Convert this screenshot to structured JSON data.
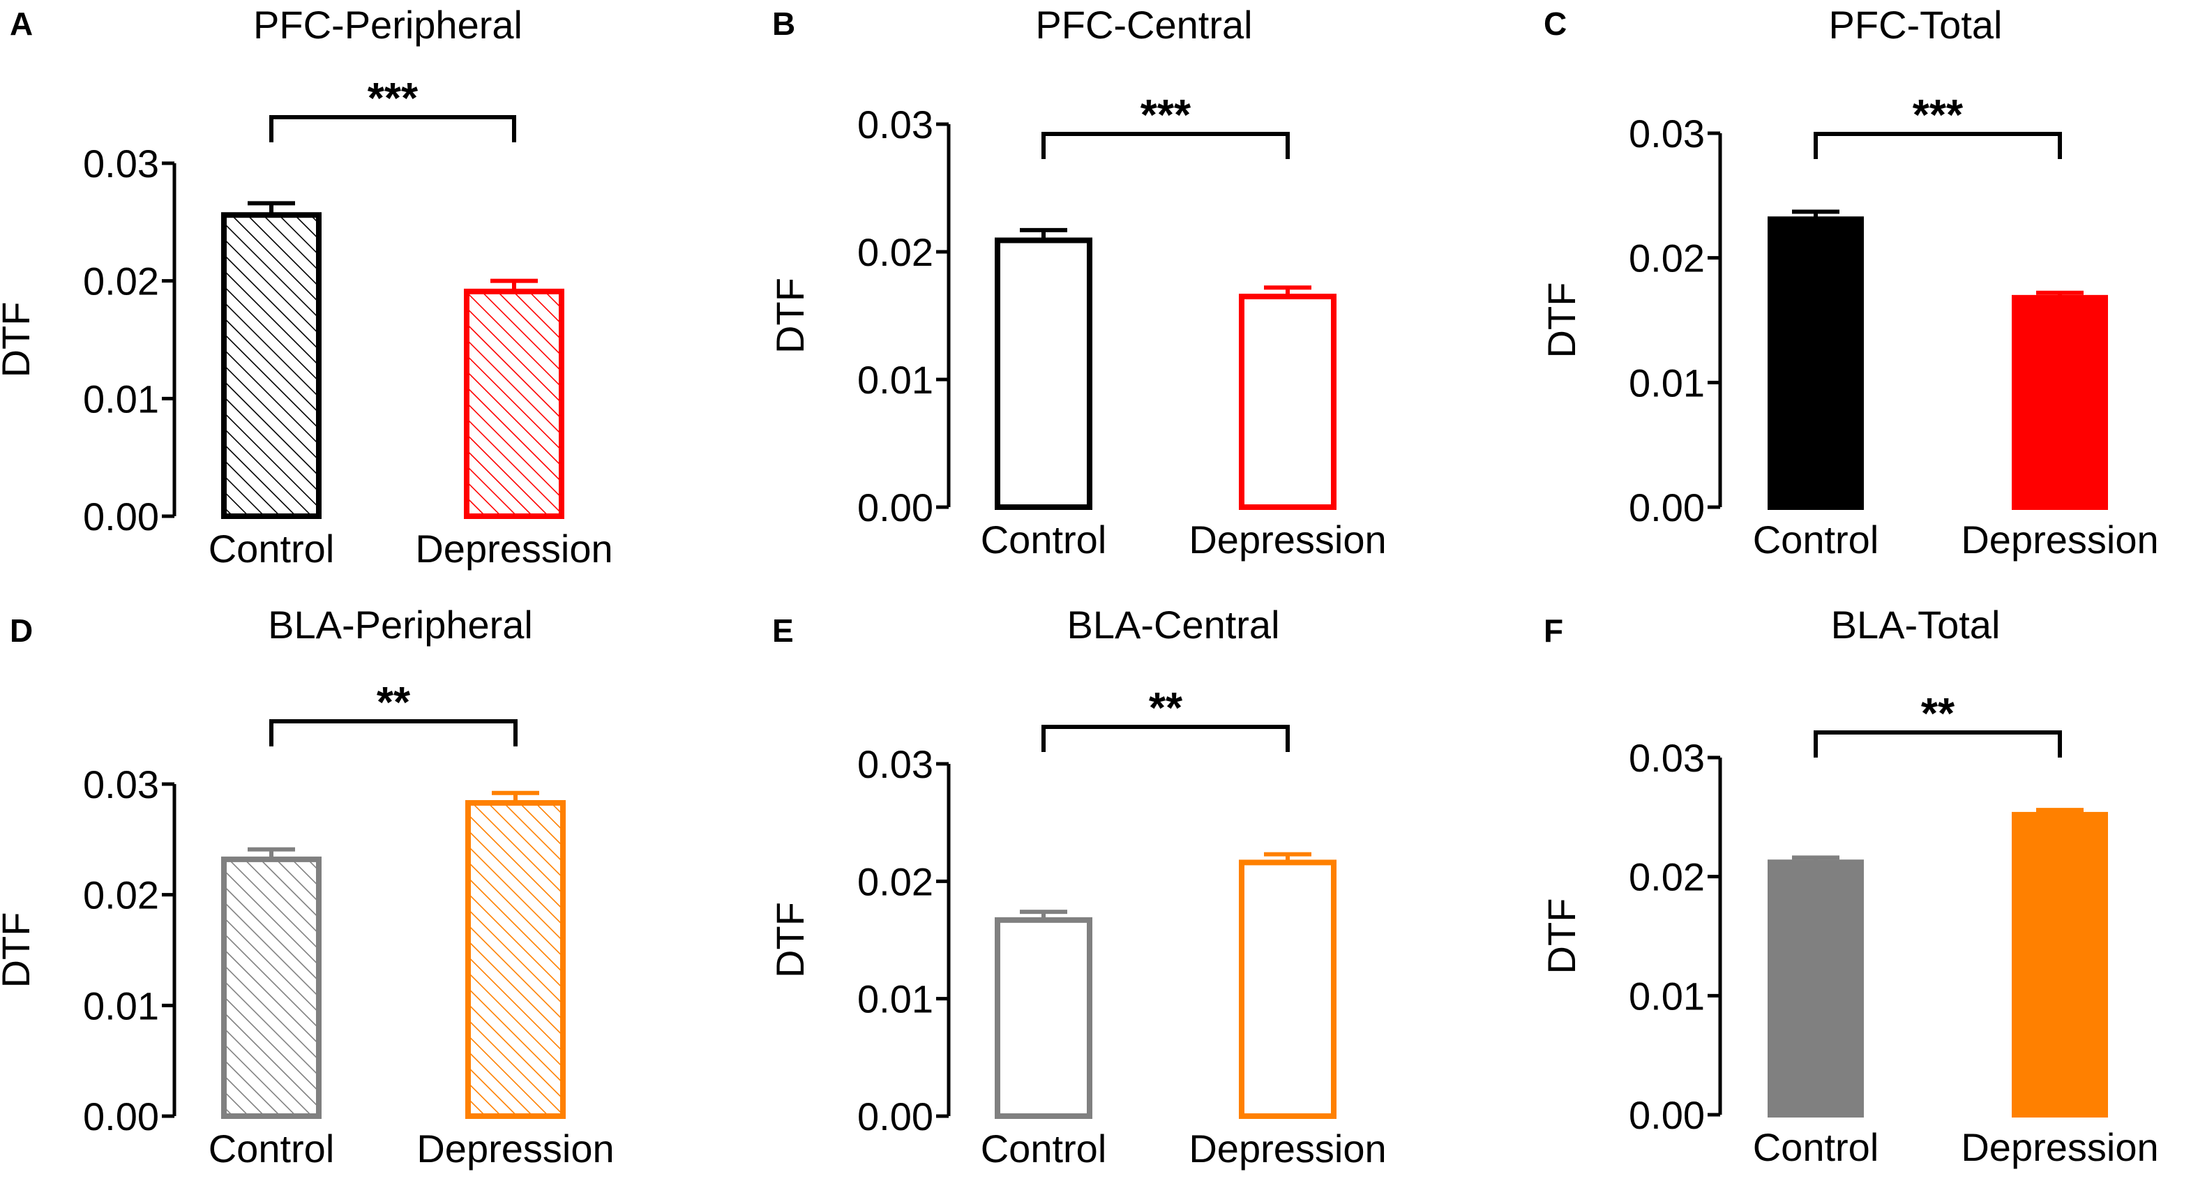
{
  "figure": {
    "y_axis_label": "DTF",
    "y_ticks": [
      "0.00",
      "0.01",
      "0.02",
      "0.03"
    ],
    "colors": {
      "control_pfc": "#000000",
      "depression_pfc": "#ff0000",
      "control_bla": "#808080",
      "depression_bla": "#ff8000",
      "axis": "#000000"
    }
  },
  "chart_data": [
    {
      "panel": "A",
      "type": "bar",
      "title": "PFC-Peripheral",
      "categories": [
        "Control",
        "Depression"
      ],
      "values": [
        0.0256,
        0.0191
      ],
      "errors": [
        0.001,
        0.0009
      ],
      "colors": [
        "#000000",
        "#ff0000"
      ],
      "fill": "hatched",
      "significance": "***",
      "ylabel": "DTF",
      "ylim": [
        0,
        0.03
      ],
      "yticks": [
        "0.00",
        "0.01",
        "0.02",
        "0.03"
      ]
    },
    {
      "panel": "B",
      "type": "bar",
      "title": "PFC-Central",
      "categories": [
        "Control",
        "Depression"
      ],
      "values": [
        0.0209,
        0.0165
      ],
      "errors": [
        0.0008,
        0.0007
      ],
      "colors": [
        "#000000",
        "#ff0000"
      ],
      "fill": "open",
      "significance": "***",
      "ylabel": "DTF",
      "ylim": [
        0,
        0.03
      ],
      "yticks": [
        "0.00",
        "0.01",
        "0.02",
        "0.03"
      ]
    },
    {
      "panel": "C",
      "type": "bar",
      "title": "PFC-Total",
      "categories": [
        "Control",
        "Depression"
      ],
      "values": [
        0.0231,
        0.0168
      ],
      "errors": [
        0.0006,
        0.0004
      ],
      "colors": [
        "#000000",
        "#ff0000"
      ],
      "fill": "solid",
      "significance": "***",
      "ylabel": "DTF",
      "ylim": [
        0,
        0.03
      ],
      "yticks": [
        "0.00",
        "0.01",
        "0.02",
        "0.03"
      ]
    },
    {
      "panel": "D",
      "type": "bar",
      "title": "BLA-Peripheral",
      "categories": [
        "Control",
        "Depression"
      ],
      "values": [
        0.0232,
        0.0283
      ],
      "errors": [
        0.0009,
        0.0009
      ],
      "colors": [
        "#808080",
        "#ff8000"
      ],
      "fill": "hatched",
      "significance": "**",
      "ylabel": "DTF",
      "ylim": [
        0,
        0.03
      ],
      "yticks": [
        "0.00",
        "0.01",
        "0.02",
        "0.03"
      ]
    },
    {
      "panel": "E",
      "type": "bar",
      "title": "BLA-Central",
      "categories": [
        "Control",
        "Depression"
      ],
      "values": [
        0.0167,
        0.0216
      ],
      "errors": [
        0.0007,
        0.0007
      ],
      "colors": [
        "#808080",
        "#ff8000"
      ],
      "fill": "open",
      "significance": "**",
      "ylabel": "DTF",
      "ylim": [
        0,
        0.03
      ],
      "yticks": [
        "0.00",
        "0.01",
        "0.02",
        "0.03"
      ]
    },
    {
      "panel": "F",
      "type": "bar",
      "title": "BLA-Total",
      "categories": [
        "Control",
        "Depression"
      ],
      "values": [
        0.0212,
        0.0252
      ],
      "errors": [
        0.0004,
        0.0004
      ],
      "colors": [
        "#808080",
        "#ff8000"
      ],
      "fill": "solid",
      "significance": "**",
      "ylabel": "DTF",
      "ylim": [
        0,
        0.03
      ],
      "yticks": [
        "0.00",
        "0.01",
        "0.02",
        "0.03"
      ]
    }
  ]
}
